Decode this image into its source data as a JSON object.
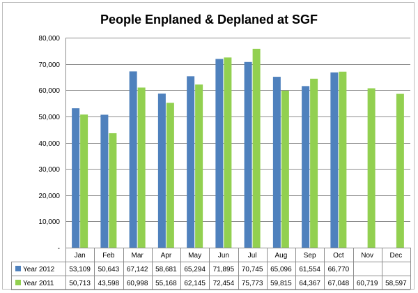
{
  "chart_data": {
    "type": "bar",
    "title": "People Enplaned & Deplaned at SGF",
    "categories": [
      "Jan",
      "Feb",
      "Mar",
      "Apr",
      "May",
      "Jun",
      "Jul",
      "Aug",
      "Sep",
      "Oct",
      "Nov",
      "Dec"
    ],
    "series": [
      {
        "name": "Year 2012",
        "color": "#4f81bd",
        "values": [
          53109,
          50643,
          67142,
          58681,
          65294,
          71895,
          70745,
          65096,
          61554,
          66770,
          null,
          null
        ],
        "labels": [
          "53,109",
          "50,643",
          "67,142",
          "58,681",
          "65,294",
          "71,895",
          "70,745",
          "65,096",
          "61,554",
          "66,770",
          "",
          ""
        ]
      },
      {
        "name": "Year 2011",
        "color": "#92d050",
        "values": [
          50713,
          43598,
          60998,
          55168,
          62145,
          72454,
          75773,
          59815,
          64367,
          67048,
          60719,
          58597
        ],
        "labels": [
          "50,713",
          "43,598",
          "60,998",
          "55,168",
          "62,145",
          "72,454",
          "75,773",
          "59,815",
          "64,367",
          "67,048",
          "60,719",
          "58,597"
        ]
      }
    ],
    "ylim": [
      0,
      80000
    ],
    "yticks": [
      0,
      10000,
      20000,
      30000,
      40000,
      50000,
      60000,
      70000,
      80000
    ],
    "ytick_labels": [
      "-",
      "10,000",
      "20,000",
      "30,000",
      "40,000",
      "50,000",
      "60,000",
      "70,000",
      "80,000"
    ],
    "grid": true,
    "legend": "data-table"
  }
}
